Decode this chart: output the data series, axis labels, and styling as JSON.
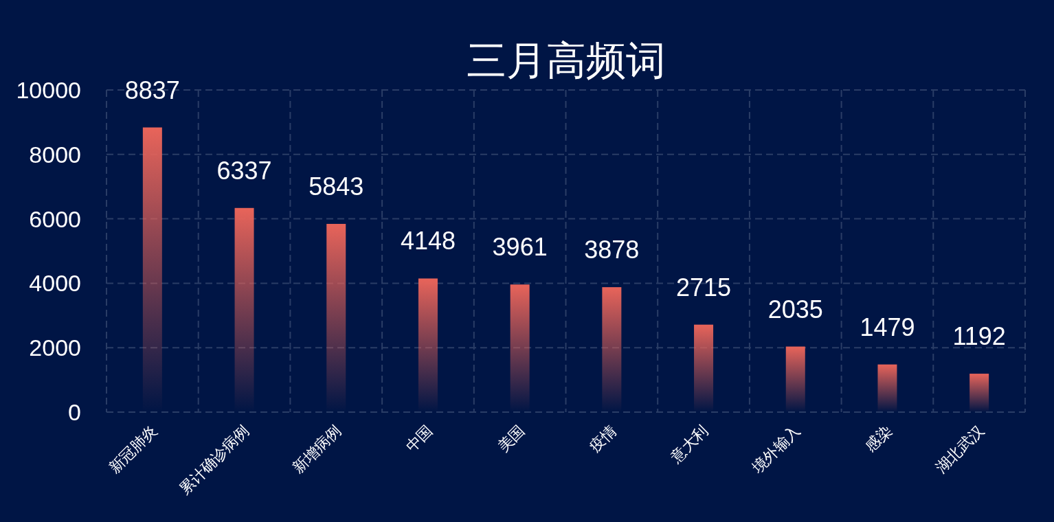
{
  "chart_data": {
    "type": "bar",
    "title": "三月高频词",
    "categories": [
      "新冠肺炎",
      "累计确诊病例",
      "新增病例",
      "中国",
      "美国",
      "疫情",
      "意大利",
      "境外输入",
      "感染",
      "湖北武汉"
    ],
    "values": [
      8837,
      6337,
      5843,
      4148,
      3961,
      3878,
      2715,
      2035,
      1479,
      1192
    ],
    "color": "#e8645a",
    "ylim": [
      0,
      10000
    ],
    "yticks": [
      0,
      2000,
      4000,
      6000,
      8000,
      10000
    ],
    "grid": true,
    "data_labels": true
  }
}
